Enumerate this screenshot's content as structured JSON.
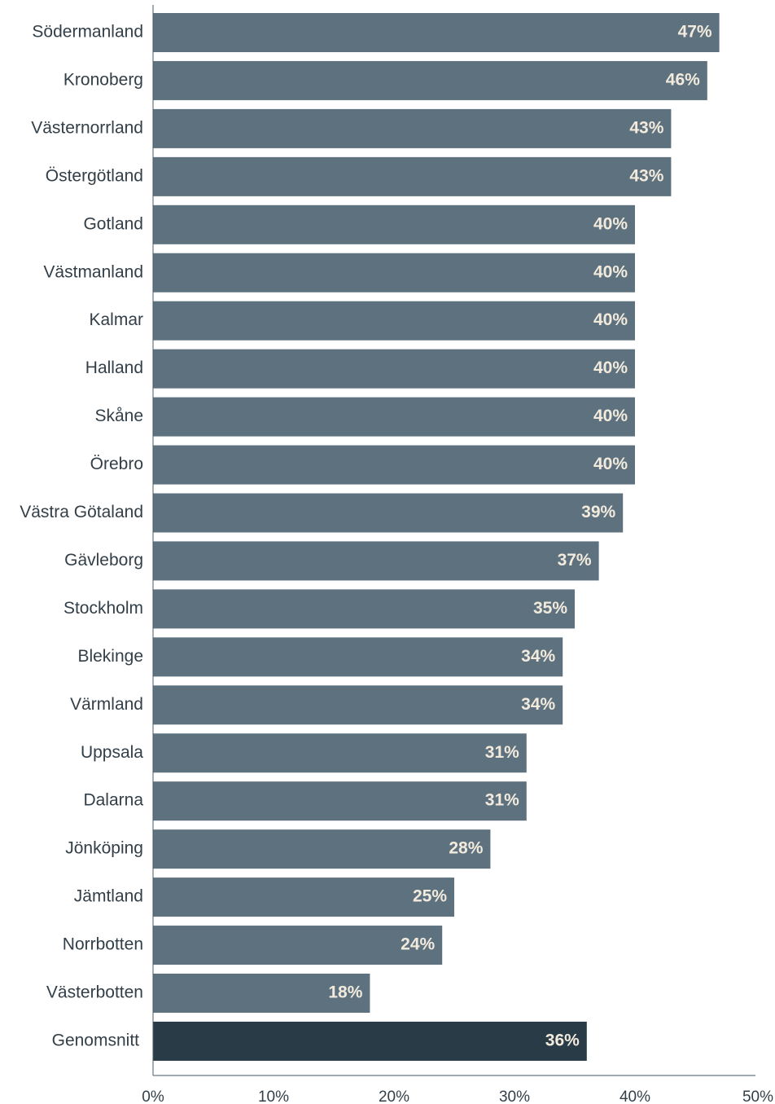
{
  "chart_data": {
    "type": "bar",
    "orientation": "horizontal",
    "categories": [
      "Södermanland",
      "Kronoberg",
      "Västernorrland",
      "Östergötland",
      "Gotland",
      "Västmanland",
      "Kalmar",
      "Halland",
      "Skåne",
      "Örebro",
      "Västra Götaland",
      "Gävleborg",
      "Stockholm",
      "Blekinge",
      "Värmland",
      "Uppsala",
      "Dalarna",
      "Jönköping",
      "Jämtland",
      "Norrbotten",
      "Västerbotten",
      "Genomsnitt"
    ],
    "values": [
      47,
      46,
      43,
      43,
      40,
      40,
      40,
      40,
      40,
      40,
      39,
      37,
      35,
      34,
      34,
      31,
      31,
      28,
      25,
      24,
      18,
      36
    ],
    "value_labels": [
      "47%",
      "46%",
      "43%",
      "43%",
      "40%",
      "40%",
      "40%",
      "40%",
      "40%",
      "40%",
      "39%",
      "37%",
      "35%",
      "34%",
      "34%",
      "31%",
      "31%",
      "28%",
      "25%",
      "24%",
      "18%",
      "36%"
    ],
    "highlight_category": "Genomsnitt",
    "xlim": [
      0,
      50
    ],
    "x_ticks": [
      0,
      10,
      20,
      30,
      40,
      50
    ],
    "x_tick_labels": [
      "0%",
      "10%",
      "20%",
      "30%",
      "40%",
      "50%"
    ],
    "grid": false,
    "legend": "none",
    "colors": {
      "bar": "#5e717e",
      "highlight": "#283b47",
      "value_text": "#f2ebdd",
      "label_text": "#333f48"
    },
    "title": "",
    "xlabel": "",
    "ylabel": ""
  }
}
